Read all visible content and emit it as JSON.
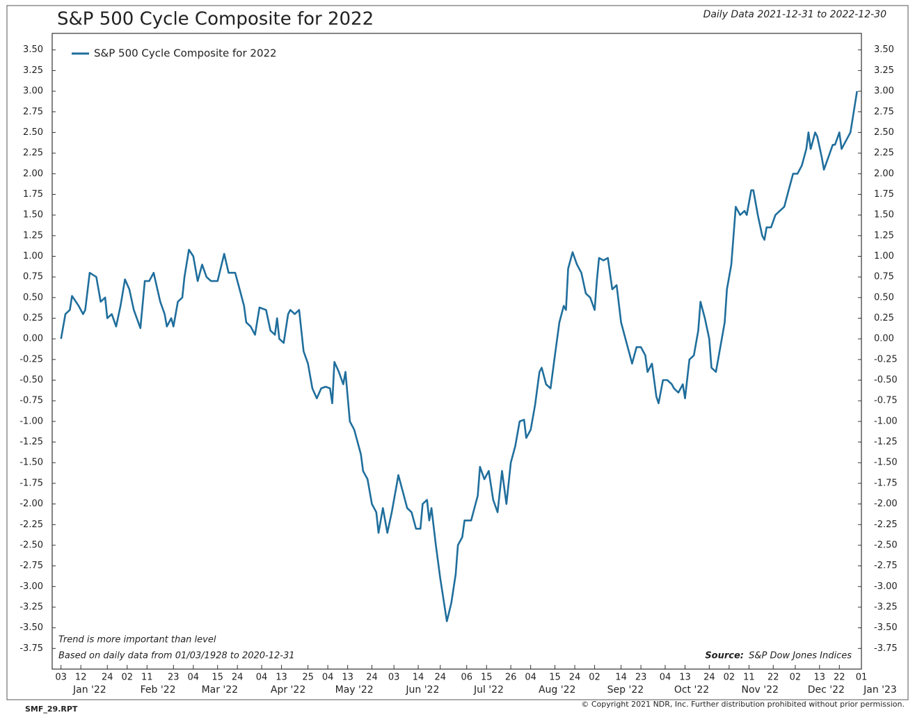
{
  "chart_data": {
    "type": "line",
    "title": "S&P 500 Cycle Composite for 2022",
    "subtitle": "Daily Data 2021-12-31 to 2022-12-30",
    "notes": [
      "Trend is more important than level",
      "Based on daily data from 01/03/1928 to 2020-12-31"
    ],
    "source_label": "Source:",
    "source": "S&P Dow Jones Indices",
    "legend": "top-left",
    "x": [
      "2022-01-03",
      "2022-01-05",
      "2022-01-07",
      "2022-01-08",
      "2022-01-11",
      "2022-01-13",
      "2022-01-14",
      "2022-01-16",
      "2022-01-19",
      "2022-01-21",
      "2022-01-23",
      "2022-01-24",
      "2022-01-26",
      "2022-01-28",
      "2022-01-30",
      "2022-02-01",
      "2022-02-03",
      "2022-02-05",
      "2022-02-08",
      "2022-02-10",
      "2022-02-12",
      "2022-02-14",
      "2022-02-17",
      "2022-02-19",
      "2022-02-20",
      "2022-02-22",
      "2022-02-23",
      "2022-02-25",
      "2022-02-27",
      "2022-02-28",
      "2022-03-02",
      "2022-03-04",
      "2022-03-06",
      "2022-03-08",
      "2022-03-10",
      "2022-03-12",
      "2022-03-15",
      "2022-03-18",
      "2022-03-20",
      "2022-03-23",
      "2022-03-25",
      "2022-03-27",
      "2022-03-28",
      "2022-03-30",
      "2022-04-01",
      "2022-04-03",
      "2022-04-06",
      "2022-04-08",
      "2022-04-10",
      "2022-04-11",
      "2022-04-12",
      "2022-04-14",
      "2022-04-16",
      "2022-04-17",
      "2022-04-19",
      "2022-04-21",
      "2022-04-23",
      "2022-04-25",
      "2022-04-27",
      "2022-04-29",
      "2022-05-01",
      "2022-05-03",
      "2022-05-05",
      "2022-05-06",
      "2022-05-07",
      "2022-05-09",
      "2022-05-11",
      "2022-05-12",
      "2022-05-14",
      "2022-05-16",
      "2022-05-19",
      "2022-05-20",
      "2022-05-22",
      "2022-05-24",
      "2022-05-26",
      "2022-05-27",
      "2022-05-29",
      "2022-05-31",
      "2022-06-02",
      "2022-06-04",
      "2022-06-05",
      "2022-06-07",
      "2022-06-09",
      "2022-06-11",
      "2022-06-13",
      "2022-06-15",
      "2022-06-16",
      "2022-06-18",
      "2022-06-19",
      "2022-06-20",
      "2022-06-22",
      "2022-06-24",
      "2022-06-27",
      "2022-06-29",
      "2022-07-01",
      "2022-07-02",
      "2022-07-04",
      "2022-07-05",
      "2022-07-08",
      "2022-07-10",
      "2022-07-11",
      "2022-07-12",
      "2022-07-14",
      "2022-07-16",
      "2022-07-18",
      "2022-07-20",
      "2022-07-22",
      "2022-07-24",
      "2022-07-26",
      "2022-07-28",
      "2022-07-30",
      "2022-08-01",
      "2022-08-02",
      "2022-08-04",
      "2022-08-06",
      "2022-08-08",
      "2022-08-09",
      "2022-08-11",
      "2022-08-13",
      "2022-08-15",
      "2022-08-17",
      "2022-08-19",
      "2022-08-20",
      "2022-08-21",
      "2022-08-23",
      "2022-08-25",
      "2022-08-27",
      "2022-08-29",
      "2022-08-31",
      "2022-09-02",
      "2022-09-03",
      "2022-09-04",
      "2022-09-06",
      "2022-09-08",
      "2022-09-10",
      "2022-09-12",
      "2022-09-14",
      "2022-09-16",
      "2022-09-18",
      "2022-09-19",
      "2022-09-21",
      "2022-09-23",
      "2022-09-25",
      "2022-09-26",
      "2022-09-28",
      "2022-09-30",
      "2022-10-01",
      "2022-10-03",
      "2022-10-05",
      "2022-10-07",
      "2022-10-08",
      "2022-10-10",
      "2022-10-12",
      "2022-10-13",
      "2022-10-15",
      "2022-10-17",
      "2022-10-19",
      "2022-10-20",
      "2022-10-22",
      "2022-10-24",
      "2022-10-25",
      "2022-10-27",
      "2022-10-29",
      "2022-10-31",
      "2022-11-01",
      "2022-11-03",
      "2022-11-05",
      "2022-11-07",
      "2022-11-09",
      "2022-11-10",
      "2022-11-12",
      "2022-11-13",
      "2022-11-15",
      "2022-11-17",
      "2022-11-18",
      "2022-11-19",
      "2022-11-21",
      "2022-11-23",
      "2022-11-25",
      "2022-11-27",
      "2022-11-29",
      "2022-12-01",
      "2022-12-03",
      "2022-12-05",
      "2022-12-07",
      "2022-12-08",
      "2022-12-09",
      "2022-12-11",
      "2022-12-12",
      "2022-12-14",
      "2022-12-15",
      "2022-12-17",
      "2022-12-19",
      "2022-12-20",
      "2022-12-22",
      "2022-12-23",
      "2022-12-25",
      "2022-12-27",
      "2022-12-30"
    ],
    "series": [
      {
        "name": "S&P 500 Cycle Composite for 2022",
        "color": "#1f6e9c",
        "values": [
          0.0,
          0.3,
          0.35,
          0.52,
          0.4,
          0.3,
          0.35,
          0.8,
          0.75,
          0.45,
          0.5,
          0.25,
          0.3,
          0.15,
          0.4,
          0.72,
          0.6,
          0.35,
          0.13,
          0.7,
          0.7,
          0.8,
          0.45,
          0.3,
          0.15,
          0.25,
          0.15,
          0.45,
          0.5,
          0.75,
          1.08,
          1.0,
          0.7,
          0.9,
          0.75,
          0.7,
          0.7,
          1.03,
          0.8,
          0.8,
          0.6,
          0.4,
          0.2,
          0.15,
          0.05,
          0.38,
          0.35,
          0.1,
          0.05,
          0.25,
          0.0,
          -0.05,
          0.3,
          0.35,
          0.3,
          0.35,
          -0.15,
          -0.3,
          -0.6,
          -0.72,
          -0.6,
          -0.58,
          -0.6,
          -0.78,
          -0.28,
          -0.4,
          -0.55,
          -0.4,
          -1.0,
          -1.1,
          -1.4,
          -1.6,
          -1.7,
          -2.0,
          -2.1,
          -2.35,
          -2.05,
          -2.35,
          -2.1,
          -1.8,
          -1.65,
          -1.85,
          -2.05,
          -2.1,
          -2.3,
          -2.3,
          -2.0,
          -1.95,
          -2.2,
          -2.05,
          -2.5,
          -2.9,
          -3.42,
          -3.2,
          -2.85,
          -2.5,
          -2.4,
          -2.2,
          -2.2,
          -2.0,
          -1.9,
          -1.55,
          -1.7,
          -1.6,
          -1.95,
          -2.1,
          -1.6,
          -2.0,
          -1.5,
          -1.3,
          -1.0,
          -0.98,
          -1.2,
          -1.1,
          -0.8,
          -0.4,
          -0.35,
          -0.55,
          -0.6,
          -0.2,
          0.2,
          0.4,
          0.35,
          0.85,
          1.05,
          0.9,
          0.8,
          0.55,
          0.5,
          0.35,
          0.7,
          0.98,
          0.95,
          0.98,
          0.6,
          0.65,
          0.2,
          0.0,
          -0.2,
          -0.3,
          -0.1,
          -0.1,
          -0.2,
          -0.4,
          -0.3,
          -0.7,
          -0.78,
          -0.5,
          -0.5,
          -0.55,
          -0.6,
          -0.65,
          -0.55,
          -0.72,
          -0.25,
          -0.2,
          0.1,
          0.45,
          0.25,
          0.0,
          -0.35,
          -0.4,
          -0.1,
          0.2,
          0.6,
          0.9,
          1.6,
          1.5,
          1.55,
          1.5,
          1.8,
          1.8,
          1.5,
          1.25,
          1.2,
          1.35,
          1.35,
          1.5,
          1.55,
          1.6,
          1.8,
          2.0,
          2.0,
          2.1,
          2.3,
          2.5,
          2.3,
          2.5,
          2.45,
          2.2,
          2.05,
          2.2,
          2.35,
          2.35,
          2.5,
          2.3,
          2.4,
          2.5,
          3.0
        ]
      }
    ],
    "xlim": [
      "2021-12-30",
      "2023-01-01"
    ],
    "xticks": [
      {
        "value": "2022-01-03",
        "label": "03"
      },
      {
        "value": "2022-01-12",
        "label": "12"
      },
      {
        "value": "2022-01-24",
        "label": "24"
      },
      {
        "value": "2022-02-02",
        "label": "02"
      },
      {
        "value": "2022-02-11",
        "label": "11"
      },
      {
        "value": "2022-02-23",
        "label": "23"
      },
      {
        "value": "2022-03-04",
        "label": "04"
      },
      {
        "value": "2022-03-15",
        "label": "15"
      },
      {
        "value": "2022-03-24",
        "label": "24"
      },
      {
        "value": "2022-04-04",
        "label": "04"
      },
      {
        "value": "2022-04-13",
        "label": "13"
      },
      {
        "value": "2022-04-25",
        "label": "25"
      },
      {
        "value": "2022-05-04",
        "label": "04"
      },
      {
        "value": "2022-05-13",
        "label": "13"
      },
      {
        "value": "2022-05-24",
        "label": "24"
      },
      {
        "value": "2022-06-03",
        "label": "03"
      },
      {
        "value": "2022-06-14",
        "label": "14"
      },
      {
        "value": "2022-06-24",
        "label": "24"
      },
      {
        "value": "2022-07-06",
        "label": "06"
      },
      {
        "value": "2022-07-15",
        "label": "15"
      },
      {
        "value": "2022-07-26",
        "label": "26"
      },
      {
        "value": "2022-08-04",
        "label": "04"
      },
      {
        "value": "2022-08-15",
        "label": "15"
      },
      {
        "value": "2022-08-24",
        "label": "24"
      },
      {
        "value": "2022-09-02",
        "label": "02"
      },
      {
        "value": "2022-09-14",
        "label": "14"
      },
      {
        "value": "2022-09-23",
        "label": "23"
      },
      {
        "value": "2022-10-04",
        "label": "04"
      },
      {
        "value": "2022-10-13",
        "label": "13"
      },
      {
        "value": "2022-10-24",
        "label": "24"
      },
      {
        "value": "2022-11-02",
        "label": "02"
      },
      {
        "value": "2022-11-11",
        "label": "11"
      },
      {
        "value": "2022-11-22",
        "label": "22"
      },
      {
        "value": "2022-12-02",
        "label": "02"
      },
      {
        "value": "2022-12-13",
        "label": "13"
      },
      {
        "value": "2022-12-22",
        "label": "22"
      },
      {
        "value": "2023-01-01",
        "label": "01"
      }
    ],
    "month_labels": [
      "Jan '22",
      "Feb '22",
      "Mar '22",
      "Apr '22",
      "May '22",
      "Jun '22",
      "Jul '22",
      "Aug '22",
      "Sep '22",
      "Oct '22",
      "Nov '22",
      "Dec '22",
      "Jan '23"
    ],
    "ylim": [
      -4.0,
      3.7
    ],
    "yticks": [
      {
        "value": 3.5,
        "label": "3.50"
      },
      {
        "value": 3.25,
        "label": "3.25"
      },
      {
        "value": 3.0,
        "label": "3.00"
      },
      {
        "value": 2.75,
        "label": "2.75"
      },
      {
        "value": 2.5,
        "label": "2.50"
      },
      {
        "value": 2.25,
        "label": "2.25"
      },
      {
        "value": 2.0,
        "label": "2.00"
      },
      {
        "value": 1.75,
        "label": "1.75"
      },
      {
        "value": 1.5,
        "label": "1.50"
      },
      {
        "value": 1.25,
        "label": "1.25"
      },
      {
        "value": 1.0,
        "label": "1.00"
      },
      {
        "value": 0.75,
        "label": "0.75"
      },
      {
        "value": 0.5,
        "label": "0.50"
      },
      {
        "value": 0.25,
        "label": "0.25"
      },
      {
        "value": 0,
        "label": "0.00"
      },
      {
        "value": -0.25,
        "label": "-0.25"
      },
      {
        "value": -0.5,
        "label": "-0.50"
      },
      {
        "value": -0.75,
        "label": "-0.75"
      },
      {
        "value": -1.0,
        "label": "-1.00"
      },
      {
        "value": -1.25,
        "label": "-1.25"
      },
      {
        "value": -1.5,
        "label": "-1.50"
      },
      {
        "value": -1.75,
        "label": "-1.75"
      },
      {
        "value": -2.0,
        "label": "-2.00"
      },
      {
        "value": -2.25,
        "label": "-2.25"
      },
      {
        "value": -2.5,
        "label": "-2.50"
      },
      {
        "value": -2.75,
        "label": "-2.75"
      },
      {
        "value": -3.0,
        "label": "-3.00"
      },
      {
        "value": -3.25,
        "label": "-3.25"
      },
      {
        "value": -3.5,
        "label": "-3.50"
      },
      {
        "value": -3.75,
        "label": "-3.75"
      }
    ],
    "grid": false
  },
  "footer": {
    "report": "SMF_29.RPT",
    "copyright": "© Copyright 2021 NDR, Inc. Further distribution prohibited without prior permission."
  }
}
